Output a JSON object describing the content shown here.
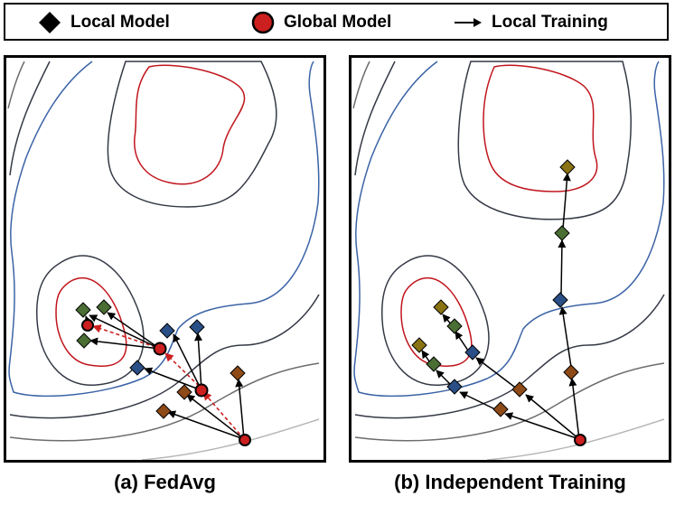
{
  "legend": {
    "local_model_label": "Local Model",
    "global_model_label": "Global Model",
    "local_training_label": "Local Training"
  },
  "panels": {
    "fedavg_caption": "(a) FedAvg",
    "independent_caption": "(b) Independent Training"
  },
  "colors": {
    "contour_red": "#c0151c",
    "contour_blue": "#3b63a6",
    "contour_dark": "#353a46",
    "contour_mid": "#6d6d6d",
    "contour_light": "#b5b5b5",
    "global_model": "#cc1f1f",
    "aggregation_arrow": "#cc1f1f",
    "local_blue": "#2a4f86",
    "local_green": "#4a6e33",
    "local_orange": "#8e4a17",
    "local_olive": "#8a7314"
  }
}
